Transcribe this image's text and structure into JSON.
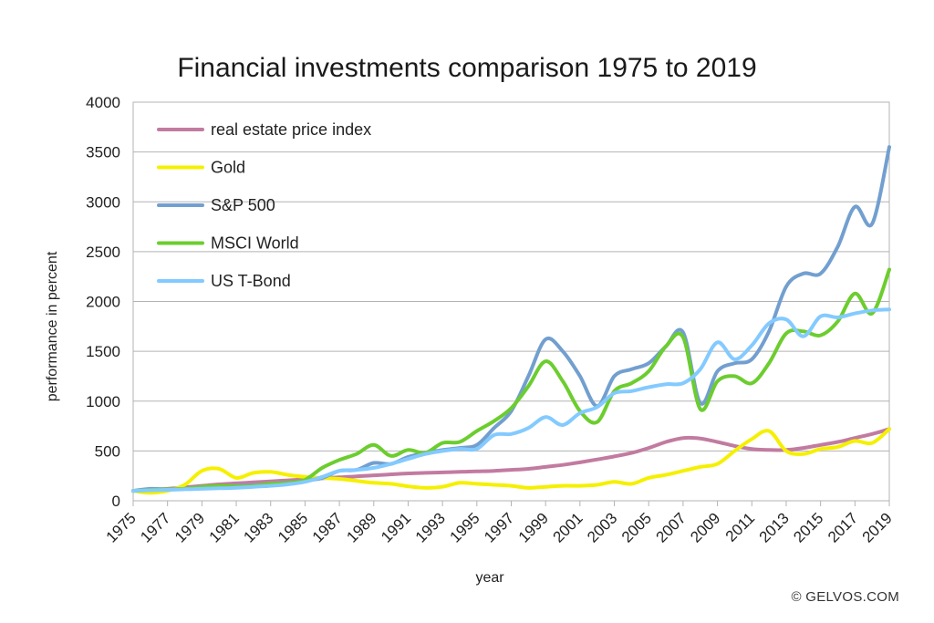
{
  "credit": "© GELVOS.COM",
  "chart_data": {
    "type": "line",
    "title": "Financial investments comparison 1975 to 2019",
    "xlabel": "year",
    "ylabel": "performance in percent",
    "x_tick_labels": [
      "1975",
      "1977",
      "1979",
      "1981",
      "1983",
      "1985",
      "1987",
      "1989",
      "1991",
      "1993",
      "1995",
      "1997",
      "1999",
      "2001",
      "2003",
      "2005",
      "2007",
      "2009",
      "2011",
      "2013",
      "2015",
      "2017",
      "2019"
    ],
    "y_tick_labels": [
      "0",
      "500",
      "1000",
      "1500",
      "2000",
      "2500",
      "3000",
      "3500",
      "4000"
    ],
    "xlim": [
      1975,
      2019
    ],
    "ylim": [
      0,
      4000
    ],
    "grid": "horizontal",
    "legend_position": "top-left",
    "x": [
      1975,
      1976,
      1977,
      1978,
      1979,
      1980,
      1981,
      1982,
      1983,
      1984,
      1985,
      1986,
      1987,
      1988,
      1989,
      1990,
      1991,
      1992,
      1993,
      1994,
      1995,
      1996,
      1997,
      1998,
      1999,
      2000,
      2001,
      2002,
      2003,
      2004,
      2005,
      2006,
      2007,
      2008,
      2009,
      2010,
      2011,
      2012,
      2013,
      2014,
      2015,
      2016,
      2017,
      2018,
      2019
    ],
    "series": [
      {
        "name": "real estate price index",
        "color": "#c27ba0",
        "values": [
          100,
          110,
          120,
          135,
          150,
          165,
          175,
          185,
          195,
          205,
          215,
          225,
          235,
          245,
          255,
          265,
          275,
          280,
          285,
          290,
          295,
          300,
          310,
          320,
          340,
          360,
          385,
          415,
          445,
          480,
          530,
          590,
          630,
          625,
          590,
          550,
          520,
          510,
          510,
          530,
          560,
          590,
          630,
          670,
          720
        ]
      },
      {
        "name": "Gold",
        "color": "#f5f000",
        "values": [
          100,
          80,
          100,
          160,
          300,
          320,
          230,
          280,
          290,
          260,
          240,
          230,
          220,
          200,
          180,
          170,
          145,
          130,
          140,
          180,
          170,
          160,
          150,
          130,
          140,
          150,
          150,
          160,
          190,
          170,
          230,
          260,
          300,
          340,
          370,
          500,
          620,
          700,
          500,
          470,
          520,
          540,
          600,
          580,
          720
        ]
      },
      {
        "name": "S&P 500",
        "color": "#729fcf",
        "values": [
          100,
          120,
          115,
          120,
          130,
          140,
          150,
          155,
          170,
          180,
          200,
          230,
          300,
          310,
          380,
          370,
          440,
          480,
          510,
          530,
          560,
          730,
          900,
          1250,
          1620,
          1500,
          1250,
          950,
          1250,
          1320,
          1380,
          1550,
          1690,
          980,
          1300,
          1380,
          1420,
          1700,
          2150,
          2280,
          2280,
          2550,
          2950,
          2780,
          3550
        ]
      },
      {
        "name": "MSCI World",
        "color": "#6ccd2f",
        "values": [
          100,
          110,
          115,
          120,
          140,
          150,
          145,
          150,
          170,
          180,
          210,
          330,
          410,
          470,
          560,
          450,
          510,
          480,
          580,
          590,
          700,
          800,
          930,
          1150,
          1400,
          1200,
          900,
          790,
          1100,
          1180,
          1300,
          1550,
          1640,
          920,
          1200,
          1250,
          1180,
          1380,
          1680,
          1700,
          1660,
          1800,
          2080,
          1880,
          2320
        ]
      },
      {
        "name": "US T-Bond",
        "color": "#83caff",
        "values": [
          100,
          105,
          110,
          115,
          120,
          125,
          130,
          140,
          150,
          165,
          190,
          240,
          300,
          310,
          330,
          370,
          420,
          470,
          500,
          520,
          520,
          660,
          670,
          730,
          840,
          760,
          880,
          940,
          1080,
          1100,
          1140,
          1170,
          1180,
          1320,
          1590,
          1420,
          1560,
          1780,
          1820,
          1650,
          1850,
          1840,
          1880,
          1910,
          1920
        ]
      }
    ]
  }
}
